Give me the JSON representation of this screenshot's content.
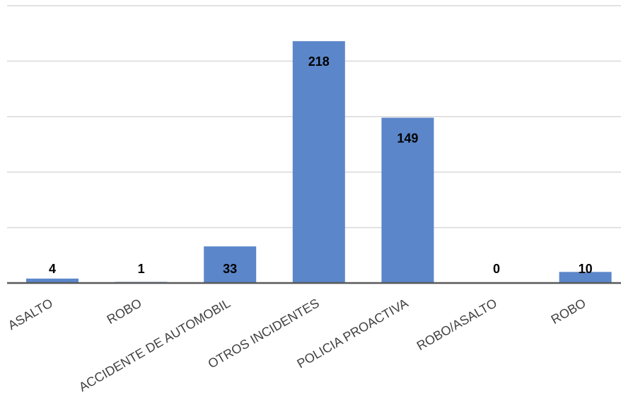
{
  "chart_data": {
    "type": "bar",
    "title": "",
    "xlabel": "",
    "ylabel": "",
    "categories": [
      "ASALTO",
      "ROBO",
      "ACCIDENTE DE AUTOMOBIL",
      "OTROS INCIDENTES",
      "POLICIA PROACTIVA",
      "ROBO/ASALTO",
      "ROBO"
    ],
    "values": [
      4,
      1,
      33,
      218,
      149,
      0,
      10
    ],
    "data_labels": [
      "4",
      "1",
      "33",
      "218",
      "149",
      "0",
      "10"
    ],
    "ylim": [
      0,
      250
    ],
    "y_gridlines": [
      50,
      100,
      150,
      200,
      250
    ],
    "y_tick_labels_shown": false,
    "grid": true,
    "legend": "none",
    "colors": {
      "bar": "#5b86ca",
      "gridline": "#d9d9d9",
      "axis": "#595959",
      "label": "#000000",
      "tick_label": "#404040"
    }
  }
}
